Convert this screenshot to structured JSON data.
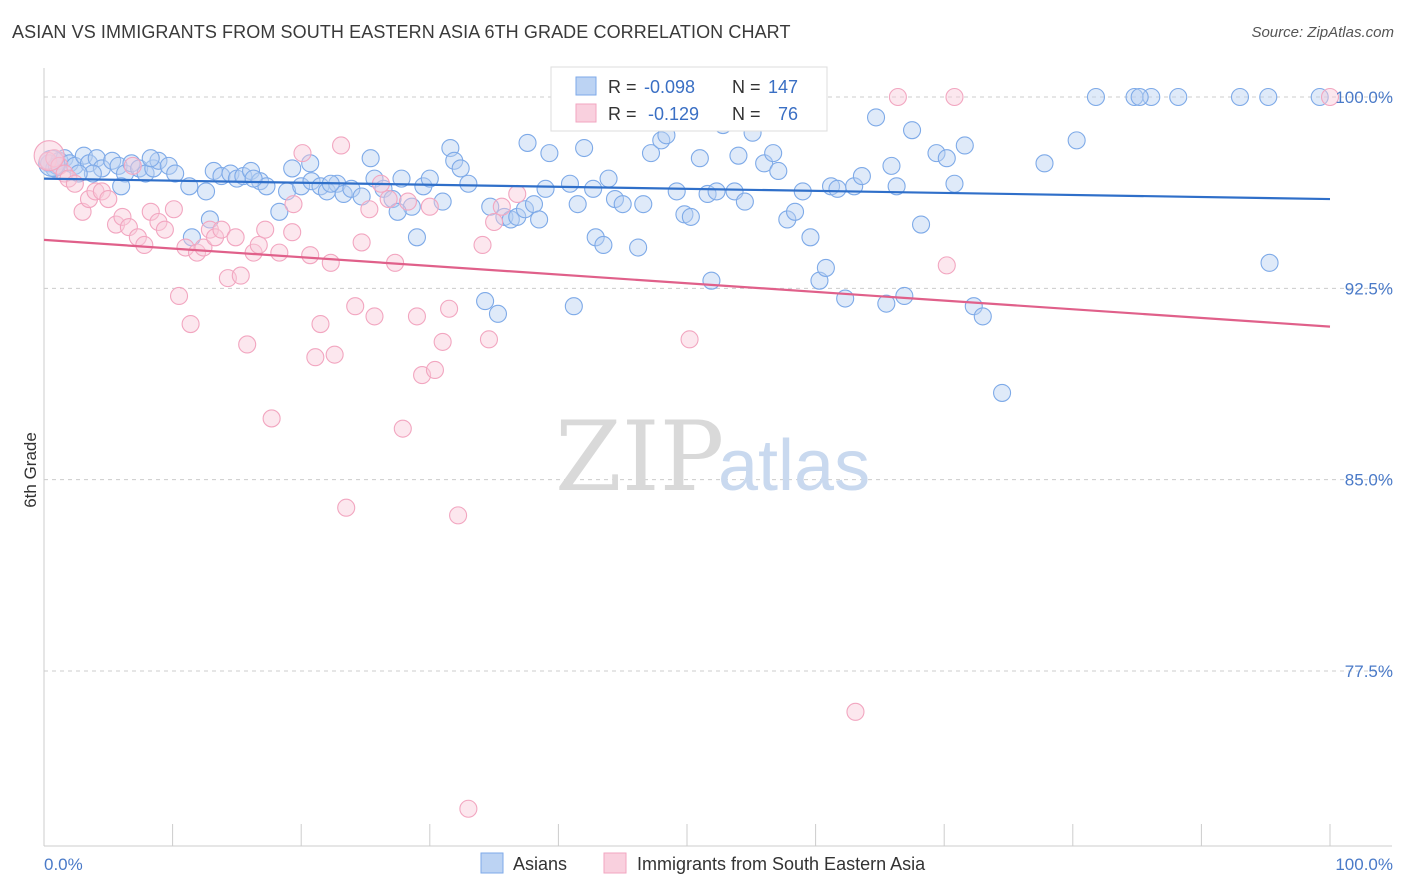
{
  "title": "ASIAN VS IMMIGRANTS FROM SOUTH EASTERN ASIA 6TH GRADE CORRELATION CHART",
  "source": "Source: ZipAtlas.com",
  "watermark": {
    "zip": "ZIP",
    "atlas": "atlas"
  },
  "colors": {
    "blue": "#7eaae8",
    "blue_line": "#2f6fc9",
    "pink": "#f2a6c0",
    "pink_line": "#e0608a",
    "grid": "#cccccc",
    "tick_text": "#4a7ac8"
  },
  "stats": [
    {
      "r_label": "R =",
      "r_value": "-0.098",
      "n_label": "N =",
      "n_value": "147"
    },
    {
      "r_label": "R =",
      "r_value": "-0.129",
      "n_label": "N =",
      "n_value": "76"
    }
  ],
  "legend": [
    "Asians",
    "Immigrants from South Eastern Asia"
  ],
  "chart_data": {
    "type": "scatter",
    "xlabel": "",
    "ylabel": "6th Grade",
    "xlim": [
      0,
      100
    ],
    "ylim": [
      70,
      100
    ],
    "x_tick_labels": [
      "0.0%",
      "100.0%"
    ],
    "y_ticks": [
      77.5,
      85.0,
      92.5,
      100.0
    ],
    "y_tick_labels": [
      "77.5%",
      "85.0%",
      "92.5%",
      "100.0%"
    ],
    "grid": "horizontal dashed",
    "series": [
      {
        "name": "Asians",
        "trend": [
          [
            0,
            96.8
          ],
          [
            100,
            96.0
          ]
        ],
        "points": [
          [
            0.4,
            97.4
          ],
          [
            0.8,
            97.2
          ],
          [
            1.2,
            97.5
          ],
          [
            1.6,
            97.6
          ],
          [
            2.0,
            97.4
          ],
          [
            2.4,
            97.3
          ],
          [
            3.1,
            97.7
          ],
          [
            3.5,
            97.4
          ],
          [
            4.1,
            97.6
          ],
          [
            4.5,
            97.2
          ],
          [
            5.3,
            97.5
          ],
          [
            5.8,
            97.3
          ],
          [
            6.3,
            97.0
          ],
          [
            6.8,
            97.4
          ],
          [
            7.4,
            97.2
          ],
          [
            7.9,
            97.0
          ],
          [
            8.5,
            97.2
          ],
          [
            8.9,
            97.5
          ],
          [
            9.7,
            97.3
          ],
          [
            10.2,
            97.0
          ],
          [
            11.3,
            96.5
          ],
          [
            12.6,
            96.3
          ],
          [
            13.2,
            97.1
          ],
          [
            13.8,
            96.9
          ],
          [
            14.5,
            97.0
          ],
          [
            15.0,
            96.8
          ],
          [
            15.5,
            96.9
          ],
          [
            16.1,
            97.1
          ],
          [
            16.8,
            96.7
          ],
          [
            17.3,
            96.5
          ],
          [
            18.3,
            95.5
          ],
          [
            18.9,
            96.3
          ],
          [
            19.3,
            97.2
          ],
          [
            20.0,
            96.5
          ],
          [
            20.8,
            96.7
          ],
          [
            21.5,
            96.5
          ],
          [
            22.0,
            96.3
          ],
          [
            22.8,
            96.6
          ],
          [
            23.3,
            96.2
          ],
          [
            23.9,
            96.4
          ],
          [
            24.7,
            96.1
          ],
          [
            25.4,
            97.6
          ],
          [
            25.7,
            96.8
          ],
          [
            26.4,
            96.4
          ],
          [
            27.1,
            96.0
          ],
          [
            27.8,
            96.8
          ],
          [
            28.6,
            95.7
          ],
          [
            29.0,
            94.5
          ],
          [
            29.5,
            96.5
          ],
          [
            30.0,
            96.8
          ],
          [
            31.0,
            95.9
          ],
          [
            31.6,
            98.0
          ],
          [
            31.9,
            97.5
          ],
          [
            32.4,
            97.2
          ],
          [
            33.0,
            96.6
          ],
          [
            34.3,
            92.0
          ],
          [
            34.7,
            95.7
          ],
          [
            35.3,
            91.5
          ],
          [
            35.8,
            95.3
          ],
          [
            36.3,
            95.2
          ],
          [
            36.8,
            95.3
          ],
          [
            37.4,
            95.6
          ],
          [
            38.1,
            95.8
          ],
          [
            38.5,
            95.2
          ],
          [
            39.0,
            96.4
          ],
          [
            39.3,
            97.8
          ],
          [
            40.3,
            99.0
          ],
          [
            40.9,
            96.6
          ],
          [
            41.2,
            91.8
          ],
          [
            42.0,
            98.0
          ],
          [
            42.9,
            94.5
          ],
          [
            43.5,
            94.2
          ],
          [
            43.9,
            96.8
          ],
          [
            44.4,
            96.0
          ],
          [
            45.0,
            95.8
          ],
          [
            45.5,
            99.0
          ],
          [
            46.2,
            94.1
          ],
          [
            46.6,
            95.8
          ],
          [
            47.2,
            97.8
          ],
          [
            48.0,
            98.3
          ],
          [
            48.4,
            98.5
          ],
          [
            49.2,
            96.3
          ],
          [
            49.8,
            95.4
          ],
          [
            50.3,
            95.3
          ],
          [
            51.0,
            97.6
          ],
          [
            51.6,
            96.2
          ],
          [
            51.9,
            92.8
          ],
          [
            52.3,
            96.3
          ],
          [
            52.8,
            98.9
          ],
          [
            53.7,
            96.3
          ],
          [
            54.0,
            97.7
          ],
          [
            54.5,
            95.9
          ],
          [
            55.1,
            98.6
          ],
          [
            56.0,
            97.4
          ],
          [
            56.7,
            97.8
          ],
          [
            57.1,
            97.1
          ],
          [
            57.8,
            95.2
          ],
          [
            58.4,
            95.5
          ],
          [
            59.0,
            96.3
          ],
          [
            59.6,
            94.5
          ],
          [
            60.3,
            92.8
          ],
          [
            60.8,
            93.3
          ],
          [
            61.2,
            96.5
          ],
          [
            61.7,
            96.4
          ],
          [
            62.3,
            92.1
          ],
          [
            63.0,
            96.5
          ],
          [
            63.6,
            96.9
          ],
          [
            64.7,
            99.2
          ],
          [
            65.5,
            91.9
          ],
          [
            65.9,
            97.3
          ],
          [
            66.3,
            96.5
          ],
          [
            66.9,
            92.2
          ],
          [
            67.5,
            98.7
          ],
          [
            68.2,
            95.0
          ],
          [
            69.4,
            97.8
          ],
          [
            70.2,
            97.6
          ],
          [
            70.8,
            96.6
          ],
          [
            71.6,
            98.1
          ],
          [
            72.3,
            91.8
          ],
          [
            73.0,
            91.4
          ],
          [
            74.5,
            88.4
          ],
          [
            77.8,
            97.4
          ],
          [
            80.3,
            98.3
          ],
          [
            81.8,
            100.0
          ],
          [
            84.8,
            100.0
          ],
          [
            86.1,
            100.0
          ],
          [
            85.2,
            100.0
          ],
          [
            88.2,
            100.0
          ],
          [
            93.0,
            100.0
          ],
          [
            95.2,
            100.0
          ],
          [
            99.2,
            100.0
          ],
          [
            95.3,
            93.5
          ],
          [
            27.5,
            95.5
          ],
          [
            41.5,
            95.8
          ],
          [
            12.9,
            95.2
          ],
          [
            11.5,
            94.5
          ],
          [
            20.7,
            97.4
          ],
          [
            22.3,
            96.6
          ],
          [
            6.0,
            96.5
          ],
          [
            3.8,
            97.0
          ],
          [
            1.0,
            97.3
          ],
          [
            2.7,
            97.0
          ],
          [
            8.3,
            97.6
          ],
          [
            16.3,
            96.8
          ],
          [
            37.6,
            98.2
          ],
          [
            42.7,
            96.4
          ]
        ]
      },
      {
        "name": "Immigrants from South Eastern Asia",
        "trend": [
          [
            0,
            94.4
          ],
          [
            100,
            91.0
          ]
        ],
        "points": [
          [
            0.3,
            97.5
          ],
          [
            0.8,
            97.6
          ],
          [
            1.2,
            97.3
          ],
          [
            1.6,
            97.0
          ],
          [
            1.9,
            96.8
          ],
          [
            2.4,
            96.6
          ],
          [
            3.0,
            95.5
          ],
          [
            3.5,
            96.0
          ],
          [
            4.0,
            96.3
          ],
          [
            4.5,
            96.3
          ],
          [
            5.0,
            96.0
          ],
          [
            5.6,
            95.0
          ],
          [
            6.1,
            95.3
          ],
          [
            6.6,
            94.9
          ],
          [
            7.3,
            94.5
          ],
          [
            7.8,
            94.2
          ],
          [
            8.3,
            95.5
          ],
          [
            8.9,
            95.1
          ],
          [
            9.4,
            94.8
          ],
          [
            10.1,
            95.6
          ],
          [
            10.5,
            92.2
          ],
          [
            11.0,
            94.1
          ],
          [
            11.4,
            91.1
          ],
          [
            11.9,
            93.9
          ],
          [
            12.4,
            94.1
          ],
          [
            12.9,
            94.8
          ],
          [
            13.3,
            94.5
          ],
          [
            13.8,
            94.8
          ],
          [
            14.3,
            92.9
          ],
          [
            14.9,
            94.5
          ],
          [
            15.3,
            93.0
          ],
          [
            15.8,
            90.3
          ],
          [
            16.3,
            93.9
          ],
          [
            16.7,
            94.2
          ],
          [
            17.2,
            94.8
          ],
          [
            17.7,
            87.4
          ],
          [
            18.3,
            93.9
          ],
          [
            19.3,
            94.7
          ],
          [
            19.4,
            95.8
          ],
          [
            20.1,
            97.8
          ],
          [
            20.7,
            93.8
          ],
          [
            21.1,
            89.8
          ],
          [
            21.5,
            91.1
          ],
          [
            22.3,
            93.5
          ],
          [
            22.6,
            89.9
          ],
          [
            23.1,
            98.1
          ],
          [
            23.5,
            83.9
          ],
          [
            24.2,
            91.8
          ],
          [
            24.7,
            94.3
          ],
          [
            25.3,
            95.6
          ],
          [
            25.7,
            91.4
          ],
          [
            26.2,
            96.6
          ],
          [
            26.8,
            96.0
          ],
          [
            27.3,
            93.5
          ],
          [
            27.9,
            87.0
          ],
          [
            28.3,
            95.9
          ],
          [
            29.0,
            91.4
          ],
          [
            29.4,
            89.1
          ],
          [
            30.0,
            95.7
          ],
          [
            30.4,
            89.3
          ],
          [
            31.0,
            90.4
          ],
          [
            31.5,
            91.7
          ],
          [
            32.2,
            83.6
          ],
          [
            33.0,
            72.1
          ],
          [
            34.1,
            94.2
          ],
          [
            34.6,
            90.5
          ],
          [
            35.0,
            95.1
          ],
          [
            35.6,
            95.7
          ],
          [
            36.8,
            96.2
          ],
          [
            50.2,
            90.5
          ],
          [
            63.1,
            75.9
          ],
          [
            66.4,
            100.0
          ],
          [
            70.2,
            93.4
          ],
          [
            70.8,
            100.0
          ],
          [
            100.0,
            100.0
          ],
          [
            6.9,
            97.3
          ]
        ]
      }
    ]
  }
}
